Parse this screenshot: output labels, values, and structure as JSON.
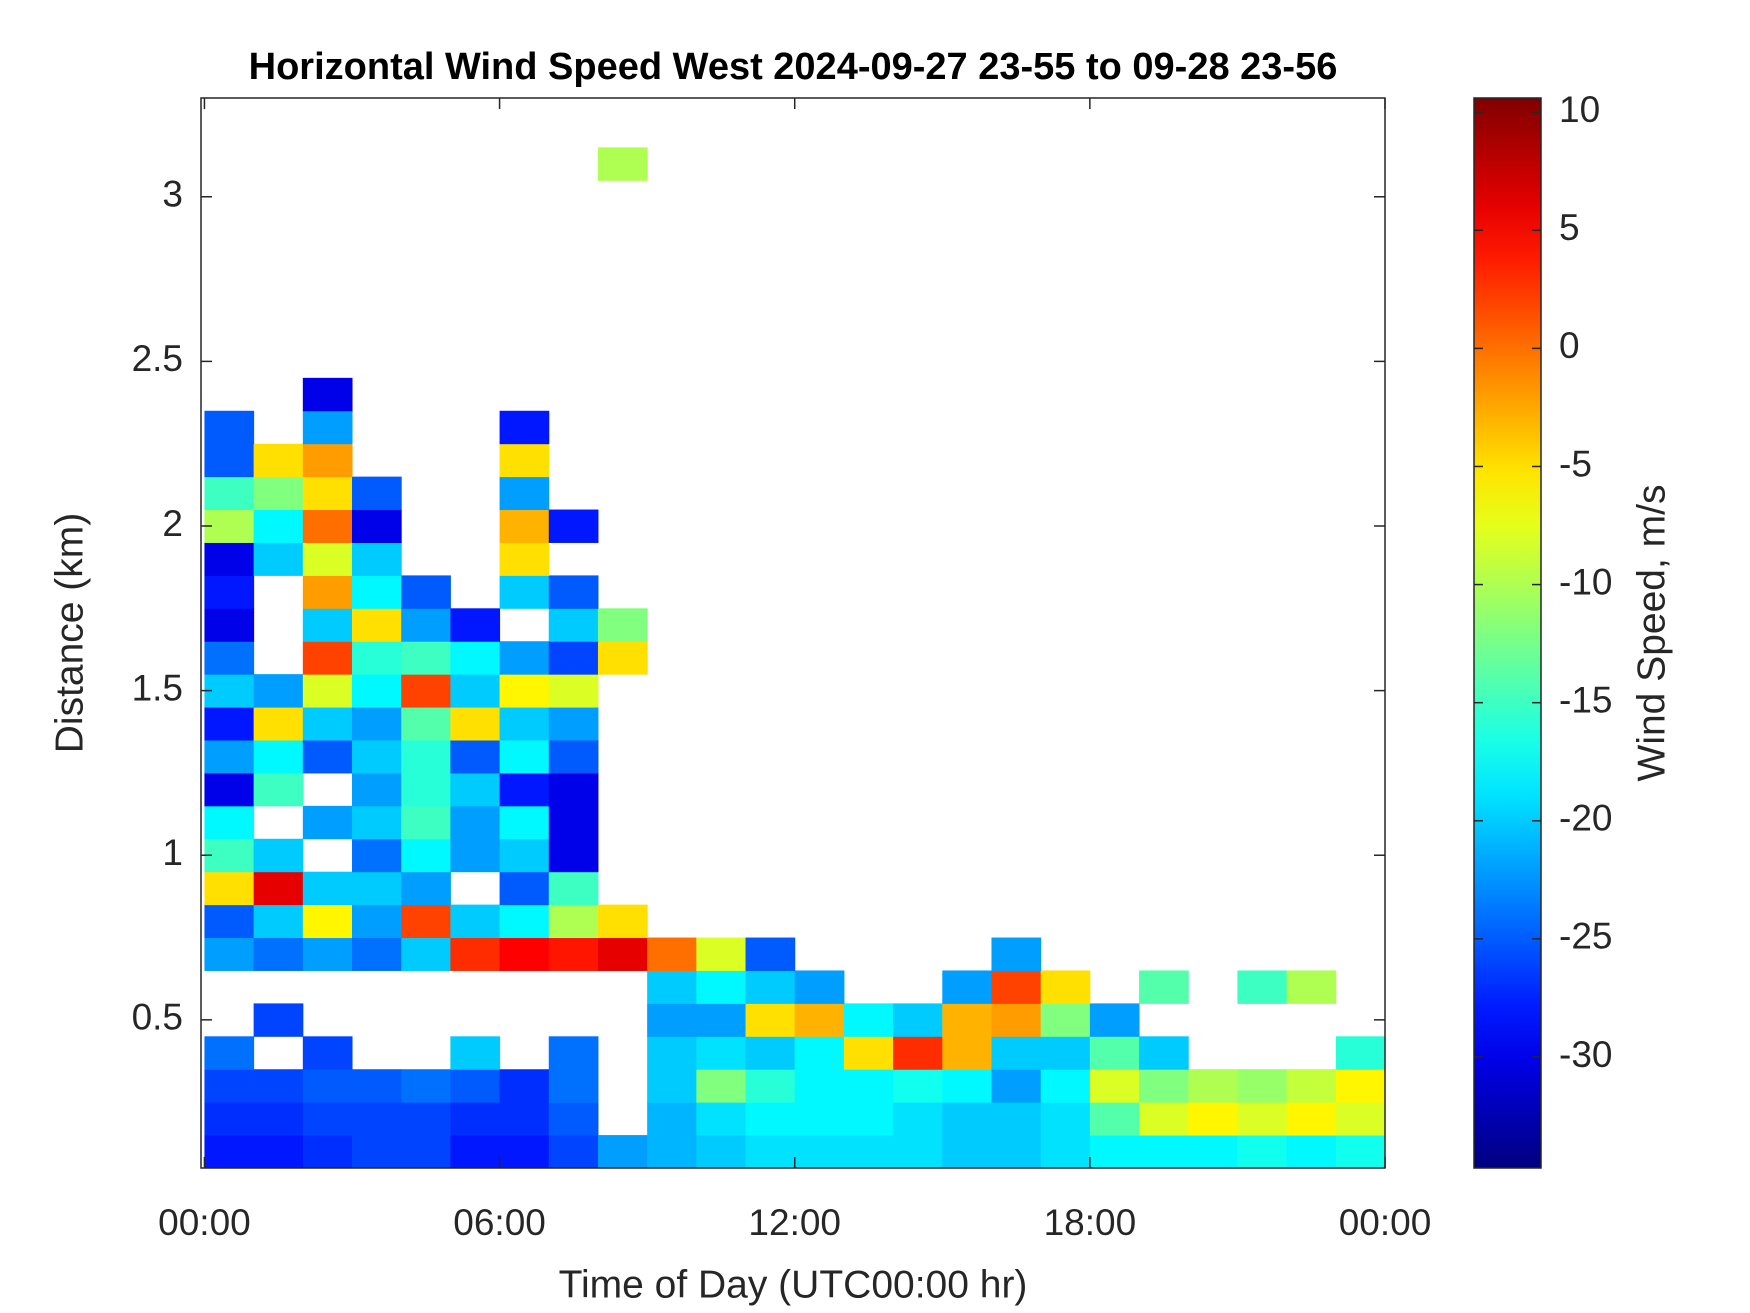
{
  "chart_data": {
    "type": "heatmap",
    "title": "Horizontal Wind Speed West 2024-09-27 23-55 to 09-28 23-56",
    "x_label": "Time of Day (UTC00:00 hr)",
    "y_label": "Distance (km)",
    "colorbar_label": "Wind Speed, m/s",
    "colormap": "jet",
    "xlim": [
      -0.07,
      24
    ],
    "xticks": [
      {
        "value": 0,
        "label": "00:00"
      },
      {
        "value": 6,
        "label": "06:00"
      },
      {
        "value": 12,
        "label": "12:00"
      },
      {
        "value": 18,
        "label": "18:00"
      },
      {
        "value": 24,
        "label": "00:00"
      }
    ],
    "ylim": [
      0.05,
      3.3
    ],
    "yticks": [
      0.5,
      1,
      1.5,
      2,
      2.5,
      3
    ],
    "clim": [
      -34.7,
      10.6
    ],
    "cticks": [
      -30,
      -25,
      -20,
      -15,
      -10,
      -5,
      0,
      5,
      10
    ],
    "x_edges": [
      0,
      1,
      2,
      3,
      4,
      5,
      6,
      7,
      8,
      9,
      10,
      11,
      12,
      13,
      14,
      15,
      16,
      17,
      18,
      19,
      20,
      21,
      22,
      23,
      24
    ],
    "y_edges": [
      0.05,
      0.15,
      0.25,
      0.35,
      0.45,
      0.55,
      0.65,
      0.75,
      0.85,
      0.95,
      1.05,
      1.15,
      1.25,
      1.35,
      1.45,
      1.55,
      1.65,
      1.75,
      1.85,
      1.95,
      2.05,
      2.15,
      2.25,
      2.35,
      2.45,
      2.55,
      2.65,
      2.75,
      2.85,
      2.95,
      3.05,
      3.15,
      3.25
    ],
    "z": [
      [
        -28,
        -28,
        -27,
        -26,
        -26,
        -28,
        -28,
        -26,
        -22,
        -21,
        -20,
        -19,
        -19,
        -19,
        -19,
        -20,
        -20,
        -19,
        -18,
        -18,
        -18,
        -17,
        -18,
        -17
      ],
      [
        -27,
        -27,
        -26,
        -26,
        -26,
        -27,
        -27,
        -25,
        null,
        -21,
        -19,
        -18,
        -18,
        -18,
        -19,
        -20,
        -20,
        -19,
        -14,
        -8,
        -6,
        -8,
        -6,
        -8
      ],
      [
        -26,
        -26,
        -25,
        -25,
        -24,
        -25,
        -27,
        -24,
        null,
        -20,
        -12,
        -16,
        -18,
        -18,
        -17,
        -18,
        -22,
        -18,
        -8,
        -12,
        -10,
        -11,
        -9,
        -6
      ],
      [
        -24,
        null,
        -26,
        null,
        null,
        -20,
        null,
        -24,
        null,
        -20,
        -19,
        -20,
        -18,
        -5,
        3,
        -3,
        -20,
        -20,
        -14,
        -20,
        null,
        null,
        null,
        -16
      ],
      [
        null,
        -26,
        null,
        null,
        null,
        null,
        null,
        null,
        null,
        -22,
        -22,
        -5,
        -3,
        -18,
        -20,
        -3,
        -2,
        -12,
        -22,
        null,
        null,
        null,
        null,
        null
      ],
      [
        null,
        null,
        null,
        null,
        null,
        null,
        null,
        null,
        null,
        -20,
        -18,
        -20,
        -22,
        null,
        null,
        -22,
        2,
        -5,
        null,
        -14,
        null,
        -15,
        -10,
        null
      ],
      [
        -22,
        -24,
        -22,
        -24,
        -20,
        3,
        5,
        4,
        6,
        0,
        -8,
        -25,
        null,
        null,
        null,
        null,
        -22,
        null,
        null,
        null,
        null,
        null,
        null,
        null
      ],
      [
        -25,
        -20,
        -6,
        -22,
        2,
        -20,
        -18,
        -10,
        -5,
        null,
        null,
        null,
        null,
        null,
        null,
        null,
        null,
        null,
        null,
        null,
        null,
        null,
        null,
        null
      ],
      [
        -5,
        6,
        -20,
        -20,
        -22,
        null,
        -25,
        -15,
        null,
        null,
        null,
        null,
        null,
        null,
        null,
        null,
        null,
        null,
        null,
        null,
        null,
        null,
        null,
        null
      ],
      [
        -15,
        -20,
        null,
        -24,
        -18,
        -22,
        -20,
        -30,
        null,
        null,
        null,
        null,
        null,
        null,
        null,
        null,
        null,
        null,
        null,
        null,
        null,
        null,
        null,
        null
      ],
      [
        -18,
        null,
        -22,
        -20,
        -15,
        -22,
        -18,
        -30,
        null,
        null,
        null,
        null,
        null,
        null,
        null,
        null,
        null,
        null,
        null,
        null,
        null,
        null,
        null,
        null
      ],
      [
        -30,
        -15,
        null,
        -22,
        -16,
        -20,
        -28,
        -30,
        null,
        null,
        null,
        null,
        null,
        null,
        null,
        null,
        null,
        null,
        null,
        null,
        null,
        null,
        null,
        null
      ],
      [
        -22,
        -18,
        -25,
        -20,
        -16,
        -25,
        -18,
        -25,
        null,
        null,
        null,
        null,
        null,
        null,
        null,
        null,
        null,
        null,
        null,
        null,
        null,
        null,
        null,
        null
      ],
      [
        -28,
        -5,
        -20,
        -22,
        -14,
        -5,
        -20,
        -22,
        null,
        null,
        null,
        null,
        null,
        null,
        null,
        null,
        null,
        null,
        null,
        null,
        null,
        null,
        null,
        null
      ],
      [
        -20,
        -22,
        -8,
        -18,
        2,
        -20,
        -6,
        -8,
        null,
        null,
        null,
        null,
        null,
        null,
        null,
        null,
        null,
        null,
        null,
        null,
        null,
        null,
        null,
        null
      ],
      [
        -24,
        null,
        2,
        -16,
        -15,
        -18,
        -22,
        -26,
        -5,
        null,
        null,
        null,
        null,
        null,
        null,
        null,
        null,
        null,
        null,
        null,
        null,
        null,
        null,
        null
      ],
      [
        -30,
        null,
        -20,
        -5,
        -22,
        -28,
        null,
        -20,
        -12,
        null,
        null,
        null,
        null,
        null,
        null,
        null,
        null,
        null,
        null,
        null,
        null,
        null,
        null,
        null
      ],
      [
        -28,
        null,
        -2,
        -18,
        -25,
        null,
        -20,
        -25,
        null,
        null,
        null,
        null,
        null,
        null,
        null,
        null,
        null,
        null,
        null,
        null,
        null,
        null,
        null,
        null
      ],
      [
        -30,
        -20,
        -8,
        -20,
        null,
        null,
        -5,
        null,
        null,
        null,
        null,
        null,
        null,
        null,
        null,
        null,
        null,
        null,
        null,
        null,
        null,
        null,
        null,
        null
      ],
      [
        -10,
        -18,
        0,
        -30,
        null,
        null,
        -3,
        -28,
        null,
        null,
        null,
        null,
        null,
        null,
        null,
        null,
        null,
        null,
        null,
        null,
        null,
        null,
        null,
        null
      ],
      [
        -15,
        -12,
        -5,
        -25,
        null,
        null,
        -22,
        null,
        null,
        null,
        null,
        null,
        null,
        null,
        null,
        null,
        null,
        null,
        null,
        null,
        null,
        null,
        null,
        null
      ],
      [
        -25,
        -5,
        -2,
        null,
        null,
        null,
        -5,
        null,
        null,
        null,
        null,
        null,
        null,
        null,
        null,
        null,
        null,
        null,
        null,
        null,
        null,
        null,
        null,
        null
      ],
      [
        -25,
        null,
        -22,
        null,
        null,
        null,
        -28,
        null,
        null,
        null,
        null,
        null,
        null,
        null,
        null,
        null,
        null,
        null,
        null,
        null,
        null,
        null,
        null,
        null
      ],
      [
        null,
        null,
        -30,
        null,
        null,
        null,
        null,
        null,
        null,
        null,
        null,
        null,
        null,
        null,
        null,
        null,
        null,
        null,
        null,
        null,
        null,
        null,
        null,
        null
      ],
      [
        null,
        null,
        null,
        null,
        null,
        null,
        null,
        null,
        null,
        null,
        null,
        null,
        null,
        null,
        null,
        null,
        null,
        null,
        null,
        null,
        null,
        null,
        null,
        null
      ],
      [
        null,
        null,
        null,
        null,
        null,
        null,
        null,
        null,
        null,
        null,
        null,
        null,
        null,
        null,
        null,
        null,
        null,
        null,
        null,
        null,
        null,
        null,
        null,
        null
      ],
      [
        null,
        null,
        null,
        null,
        null,
        null,
        null,
        null,
        null,
        null,
        null,
        null,
        null,
        null,
        null,
        null,
        null,
        null,
        null,
        null,
        null,
        null,
        null,
        null
      ],
      [
        null,
        null,
        null,
        null,
        null,
        null,
        null,
        null,
        null,
        null,
        null,
        null,
        null,
        null,
        null,
        null,
        null,
        null,
        null,
        null,
        null,
        null,
        null,
        null
      ],
      [
        null,
        null,
        null,
        null,
        null,
        null,
        null,
        null,
        null,
        null,
        null,
        null,
        null,
        null,
        null,
        null,
        null,
        null,
        null,
        null,
        null,
        null,
        null,
        null
      ],
      [
        null,
        null,
        null,
        null,
        null,
        null,
        null,
        null,
        null,
        null,
        null,
        null,
        null,
        null,
        null,
        null,
        null,
        null,
        null,
        null,
        null,
        null,
        null,
        null
      ],
      [
        null,
        null,
        null,
        null,
        null,
        null,
        null,
        null,
        -10,
        null,
        null,
        null,
        null,
        null,
        null,
        null,
        null,
        null,
        null,
        null,
        null,
        null,
        null,
        null
      ],
      [
        null,
        null,
        null,
        null,
        null,
        null,
        null,
        null,
        null,
        null,
        null,
        null,
        null,
        null,
        null,
        null,
        null,
        null,
        null,
        null,
        null,
        null,
        null,
        null
      ]
    ]
  }
}
